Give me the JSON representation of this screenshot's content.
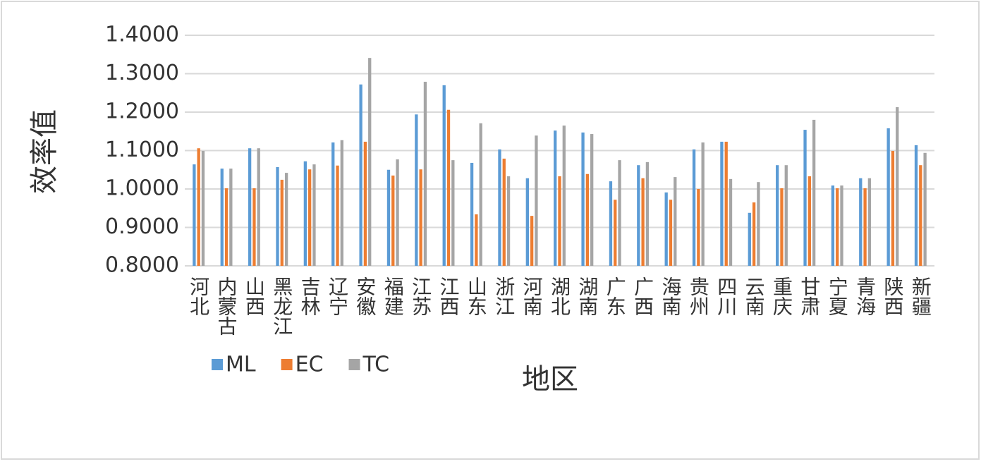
{
  "chart_data": {
    "type": "bar",
    "y_label": "效率值",
    "x_label": "地区",
    "categories": [
      "河北",
      "内蒙古",
      "山西",
      "黑龙江",
      "吉林",
      "辽宁",
      "安徽",
      "福建",
      "江苏",
      "江西",
      "山东",
      "浙江",
      "河南",
      "湖北",
      "湖南",
      "广东",
      "广西",
      "海南",
      "贵州",
      "四川",
      "云南",
      "重庆",
      "甘肃",
      "宁夏",
      "青海",
      "陕西",
      "新疆"
    ],
    "series": [
      {
        "name": "ML",
        "color": "#5b9bd5",
        "values": [
          1.064,
          1.053,
          1.106,
          1.057,
          1.072,
          1.121,
          1.272,
          1.05,
          1.194,
          1.27,
          1.068,
          1.103,
          1.028,
          1.152,
          1.147,
          1.02,
          1.062,
          0.991,
          1.103,
          1.123,
          0.938,
          1.062,
          1.154,
          1.009,
          1.028,
          1.158,
          1.114
        ]
      },
      {
        "name": "EC",
        "color": "#ed7d31",
        "values": [
          1.106,
          1.002,
          1.002,
          1.024,
          1.051,
          1.061,
          1.123,
          1.035,
          1.051,
          1.206,
          0.934,
          1.079,
          0.93,
          1.033,
          1.039,
          0.972,
          1.028,
          0.972,
          1.0,
          1.123,
          0.965,
          1.002,
          1.033,
          1.002,
          1.002,
          1.099,
          1.062
        ]
      },
      {
        "name": "TC",
        "color": "#a5a5a5",
        "values": [
          1.099,
          1.053,
          1.106,
          1.042,
          1.064,
          1.127,
          1.341,
          1.077,
          1.279,
          1.075,
          1.171,
          1.033,
          1.139,
          1.165,
          1.143,
          1.075,
          1.07,
          1.031,
          1.121,
          1.026,
          1.018,
          1.062,
          1.18,
          1.009,
          1.028,
          1.213,
          1.094
        ]
      }
    ],
    "ylim": [
      0.8,
      1.4
    ],
    "yticks": [
      {
        "value": 0.8,
        "label": "0.8000"
      },
      {
        "value": 0.9,
        "label": "0.9000"
      },
      {
        "value": 1.0,
        "label": "1.0000"
      },
      {
        "value": 1.1,
        "label": "1.1000"
      },
      {
        "value": 1.2,
        "label": "1.2000"
      },
      {
        "value": 1.3,
        "label": "1.3000"
      },
      {
        "value": 1.4,
        "label": "1.4000"
      }
    ],
    "grid": true,
    "legend": "bottom-left"
  }
}
